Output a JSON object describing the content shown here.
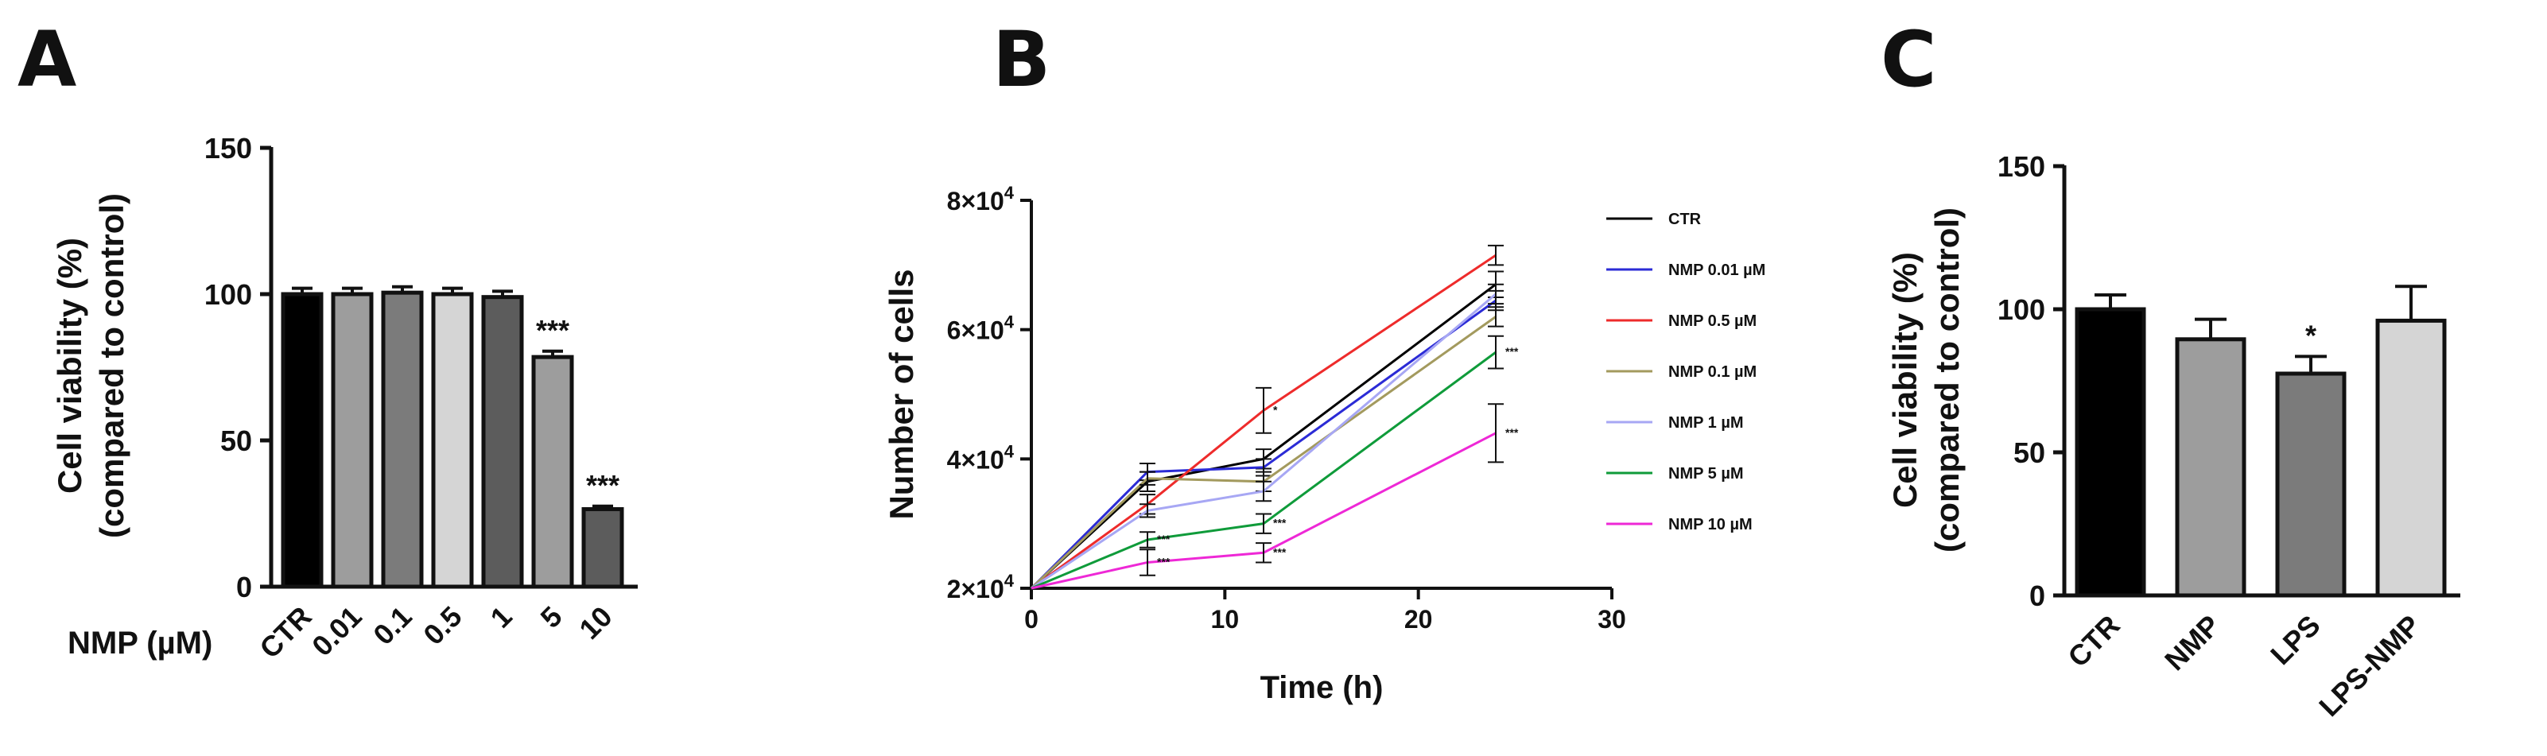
{
  "panels": {
    "A": {
      "label": "A"
    },
    "B": {
      "label": "B"
    },
    "C": {
      "label": "C"
    }
  },
  "chart_data": [
    {
      "id": "A",
      "type": "bar",
      "title": "",
      "xlabel": "NMP (µM)",
      "ylabel_line1": "Cell viability (%)",
      "ylabel_line2": "(compared to control)",
      "ylim": [
        0,
        150
      ],
      "yticks": [
        "0",
        "50",
        "100",
        "150"
      ],
      "categories": [
        "CTR",
        "0.01",
        "0.1",
        "0.5",
        "1",
        "5",
        "10"
      ],
      "values": [
        100,
        100,
        100.5,
        100,
        99,
        78.5,
        26.5
      ],
      "errors": [
        2,
        2,
        2,
        2,
        2,
        2,
        1
      ],
      "colors": [
        "#000000",
        "#9d9d9d",
        "#7b7b7b",
        "#d5d5d5",
        "#5c5c5c",
        "#9d9d9d",
        "#5c5c5c"
      ],
      "significance": [
        "",
        "",
        "",
        "",
        "",
        "***",
        "***"
      ]
    },
    {
      "id": "B",
      "type": "line",
      "title": "",
      "xlabel": "Time (h)",
      "ylabel": "Number of cells",
      "xlim": [
        0,
        30
      ],
      "ylim": [
        20000,
        80000
      ],
      "xticks": [
        "0",
        "10",
        "20",
        "30"
      ],
      "ytick_bases": [
        "2×10",
        "4×10",
        "6×10",
        "8×10"
      ],
      "ytick_exp": "4",
      "x": [
        0,
        6,
        12,
        24
      ],
      "series": [
        {
          "name": "CTR",
          "color": "#000000",
          "values": [
            20000,
            36500,
            40000,
            67000
          ],
          "errors": [
            0,
            1500,
            1500,
            2000
          ],
          "sig": [
            "",
            "",
            "",
            ""
          ]
        },
        {
          "name": "NMP 0.01 µM",
          "color": "#2b2bd6",
          "values": [
            20000,
            38000,
            38700,
            64500
          ],
          "errors": [
            0,
            1300,
            1300,
            1500
          ],
          "sig": [
            "",
            "",
            "",
            ""
          ]
        },
        {
          "name": "NMP 0.5 µM",
          "color": "#ee2b2b",
          "values": [
            20000,
            33000,
            47500,
            71500
          ],
          "errors": [
            0,
            1500,
            3500,
            1500
          ],
          "sig": [
            "",
            "",
            "*",
            ""
          ]
        },
        {
          "name": "NMP 0.1 µM",
          "color": "#a39a5e",
          "values": [
            20000,
            37000,
            36500,
            62000
          ],
          "errors": [
            0,
            1000,
            1500,
            1500
          ],
          "sig": [
            "",
            "",
            "",
            ""
          ]
        },
        {
          "name": "NMP 1 µM",
          "color": "#a7a7f4",
          "values": [
            20000,
            32000,
            35000,
            65500
          ],
          "errors": [
            0,
            1000,
            1500,
            1500
          ],
          "sig": [
            "",
            "",
            "",
            ""
          ]
        },
        {
          "name": "NMP 5 µM",
          "color": "#0f9b3a",
          "values": [
            20000,
            27500,
            30000,
            56500
          ],
          "errors": [
            0,
            1200,
            1500,
            2500
          ],
          "sig": [
            "",
            "***",
            "***",
            "***"
          ]
        },
        {
          "name": "NMP 10 µM",
          "color": "#ee28d6",
          "values": [
            20000,
            24000,
            25500,
            44000
          ],
          "errors": [
            0,
            2000,
            1500,
            4500
          ],
          "sig": [
            "",
            "***",
            "***",
            "***"
          ]
        }
      ]
    },
    {
      "id": "C",
      "type": "bar",
      "title": "",
      "xlabel": "",
      "ylabel_line1": "Cell viability (%)",
      "ylabel_line2": "(compared to control)",
      "ylim": [
        0,
        150
      ],
      "yticks": [
        "0",
        "50",
        "100",
        "150"
      ],
      "categories": [
        "CTR",
        "NMP",
        "LPS",
        "LPS-NMP"
      ],
      "values": [
        100,
        89.5,
        77.5,
        96
      ],
      "errors": [
        5,
        7,
        6,
        12
      ],
      "colors": [
        "#000000",
        "#9d9d9d",
        "#7b7b7b",
        "#d5d5d5"
      ],
      "significance": [
        "",
        "",
        "*",
        ""
      ]
    }
  ]
}
